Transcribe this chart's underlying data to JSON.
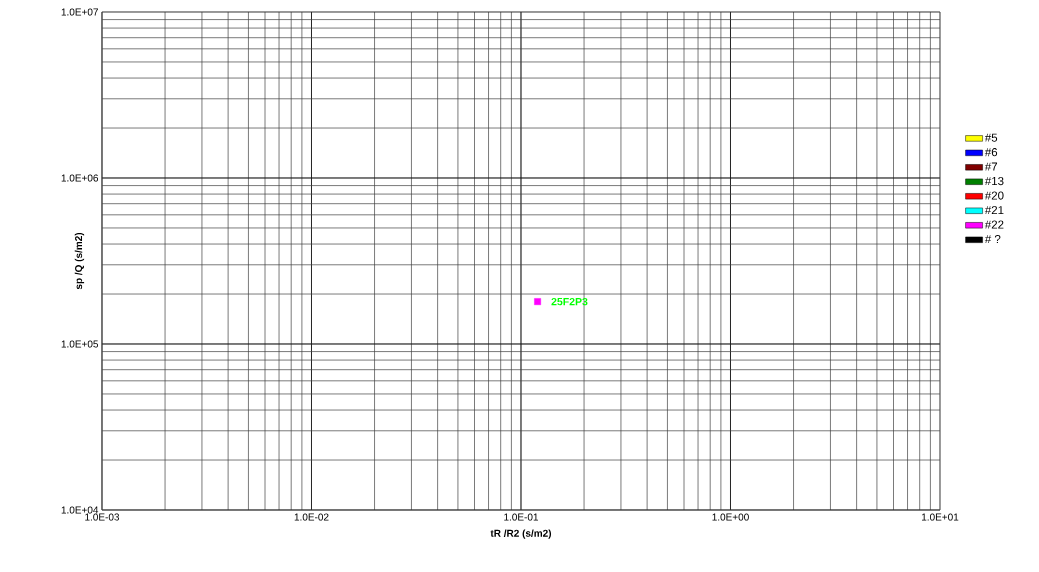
{
  "chart_data": {
    "type": "scatter",
    "xlabel": "tR /R2 (s/m2)",
    "ylabel": "sp /Q (s/m2)",
    "log": "xy",
    "grid": true,
    "marker": "square",
    "legend": "right",
    "xlim": [
      0.001,
      10
    ],
    "ylim": [
      10000,
      10000000
    ],
    "xticks": [
      {
        "value": 0.001,
        "label": "1.0E-03"
      },
      {
        "value": 0.01,
        "label": "1.0E-02"
      },
      {
        "value": 0.1,
        "label": "1.0E-01"
      },
      {
        "value": 1,
        "label": "1.0E+00"
      },
      {
        "value": 10,
        "label": "1.0E+01"
      }
    ],
    "yticks": [
      {
        "value": 10000,
        "label": "1.0E+04"
      },
      {
        "value": 100000,
        "label": "1.0E+05"
      },
      {
        "value": 1000000,
        "label": "1.0E+06"
      },
      {
        "value": 10000000,
        "label": "1.0E+07"
      }
    ],
    "series": [
      {
        "name": "#5",
        "color": "#ffff00"
      },
      {
        "name": "#6",
        "color": "#0000ff"
      },
      {
        "name": "#7",
        "color": "#800000"
      },
      {
        "name": "#13",
        "color": "#008000"
      },
      {
        "name": "#20",
        "color": "#ff0000"
      },
      {
        "name": "#21",
        "color": "#00ffff"
      },
      {
        "name": "#22",
        "color": "#ff00ff",
        "x": [
          0.12
        ],
        "values": [
          180000
        ]
      },
      {
        "name": "# ?",
        "color": "#000000"
      }
    ],
    "annotations": [
      {
        "text": "25F2P3",
        "x": 0.12,
        "y": 180000
      }
    ]
  }
}
